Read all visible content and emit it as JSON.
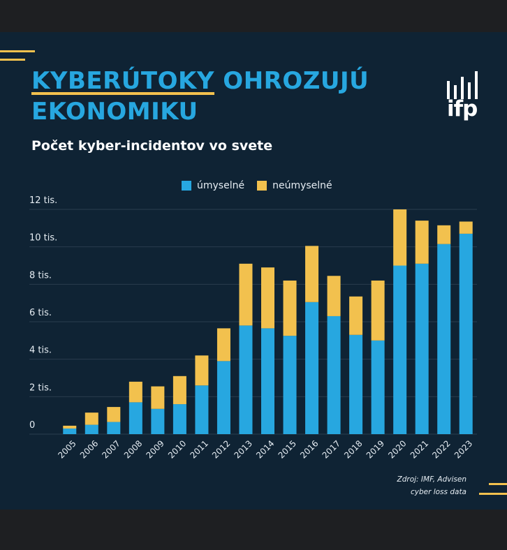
{
  "header": {
    "title_highlight": "KYBERÚTOKY",
    "title_rest": " OHROZUJÚ EKONOMIKU",
    "subtitle": "Počet kyber-incidentov vo svete"
  },
  "logo": {
    "text": "ifp"
  },
  "source": {
    "line1": "Zdroj: IMF, Advisen",
    "line2": "cyber loss data"
  },
  "colors": {
    "background": "#0f2334",
    "accent_blue": "#27a7e0",
    "accent_yellow": "#f2c14e"
  },
  "chart_data": {
    "type": "bar",
    "stacked": true,
    "categories": [
      "2005",
      "2006",
      "2007",
      "2008",
      "2009",
      "2010",
      "2011",
      "2012",
      "2013",
      "2014",
      "2015",
      "2016",
      "2017",
      "2018",
      "2019",
      "2020",
      "2021",
      "2022",
      "2023"
    ],
    "series": [
      {
        "name": "úmyselné",
        "color": "#27a7e0",
        "values": [
          300,
          500,
          650,
          1700,
          1350,
          1600,
          2600,
          3900,
          5800,
          5650,
          5250,
          7050,
          6300,
          5300,
          5000,
          9000,
          9100,
          10150,
          10700
        ]
      },
      {
        "name": "neúmyselné",
        "color": "#f2c14e",
        "values": [
          150,
          650,
          800,
          1100,
          1200,
          1500,
          1600,
          1750,
          3300,
          3250,
          2950,
          3000,
          2150,
          2050,
          3200,
          3000,
          2300,
          1000,
          650
        ]
      }
    ],
    "ytick_labels": [
      "0",
      "2 tis.",
      "4 tis.",
      "6 tis.",
      "8 tis.",
      "10 tis.",
      "12 tis."
    ],
    "ytick_values": [
      0,
      2000,
      4000,
      6000,
      8000,
      10000,
      12000
    ],
    "ylim": [
      0,
      12000
    ],
    "grid": true,
    "legend": "top-center"
  }
}
